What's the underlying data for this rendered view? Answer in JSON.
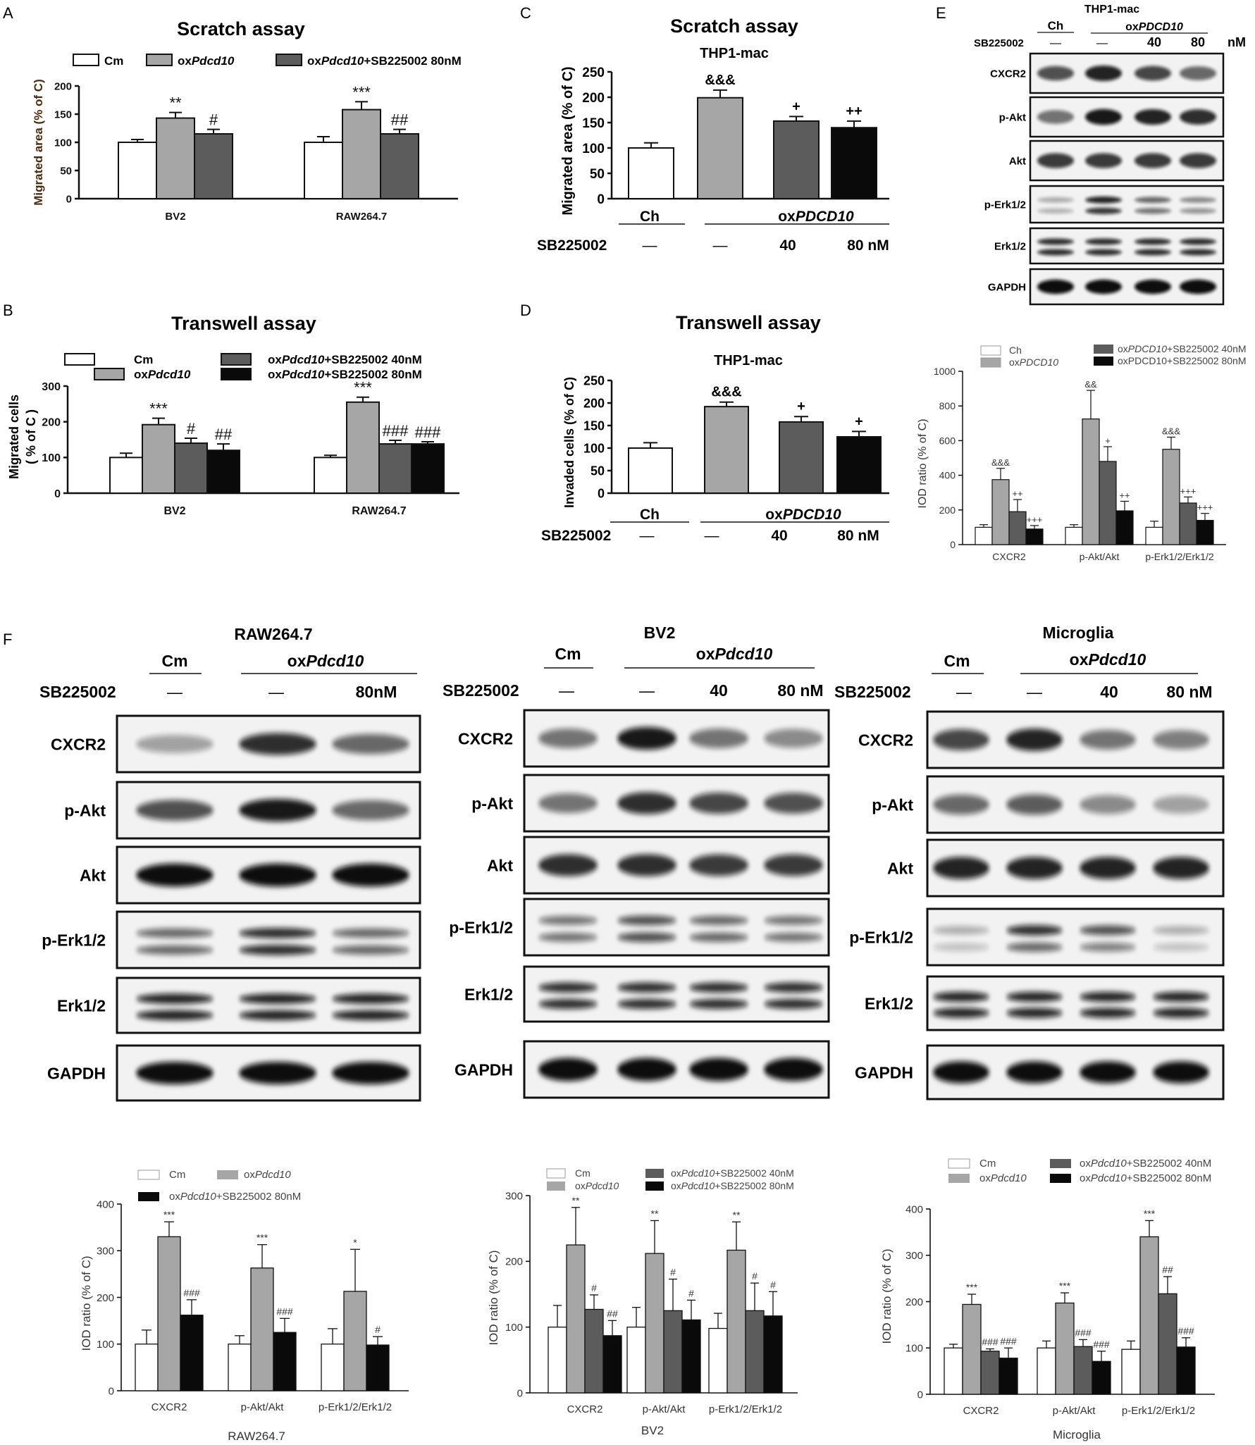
{
  "panel_letters": {
    "A": "A",
    "B": "B",
    "C": "C",
    "D": "D",
    "E": "E",
    "F": "F"
  },
  "common": {
    "cm": "Cm",
    "ch": "Ch",
    "ox_lower_prefix": "ox",
    "ox_lower_gene": "Pdcd10",
    "ox_upper_gene": "PDCD10",
    "sb": "SB225002",
    "dash": "—",
    "d40": "40",
    "d80": "80",
    "nM": "nM",
    "d80nM": "80 nM",
    "sb80nM": "80nM",
    "thp1": "THP1-mac",
    "wb_labels": {
      "cxcr2": "CXCR2",
      "pakt": "p-Akt",
      "akt": "Akt",
      "perk": "p-Erk1/2",
      "erk": "Erk1/2",
      "gapdh": "GAPDH"
    }
  },
  "colors": {
    "c1": "#ffffff",
    "c2": "#a6a6a6",
    "c3": "#5c5c5c",
    "c4": "#0a0a0a",
    "axis": "#111111",
    "ytitle": "#4a2a10"
  },
  "chart_data": [
    {
      "id": "A",
      "type": "bar",
      "title": "Scratch assay",
      "ylabel": "Migrated area (% of C)",
      "ylim": [
        0,
        200
      ],
      "yticks": [
        0,
        50,
        100,
        150,
        200
      ],
      "categories": [
        "BV2",
        "RAW264.7"
      ],
      "legend_text": {
        "s1": "Cm",
        "s2_prefix": "ox",
        "s2_gene": "Pdcd10",
        "s3_prefix": "ox",
        "s3_gene": "Pdcd10",
        "s3_suffix": "+SB225002  80nM"
      },
      "series": [
        {
          "values": [
            100,
            100
          ],
          "err": [
            5,
            10
          ]
        },
        {
          "values": [
            143,
            158
          ],
          "err": [
            10,
            14
          ]
        },
        {
          "values": [
            115,
            115
          ],
          "err": [
            8,
            8
          ]
        }
      ],
      "annotations": [
        [
          "",
          "**",
          "#"
        ],
        [
          "",
          "***",
          "##"
        ]
      ]
    },
    {
      "id": "B",
      "type": "bar",
      "title": "Transwell assay",
      "ylabel": "Migrated cells",
      "ylabel2": "( % of C )",
      "ylim": [
        0,
        300
      ],
      "yticks": [
        0,
        100,
        200,
        300
      ],
      "categories": [
        "BV2",
        "RAW264.7"
      ],
      "legend_text": {
        "s1": "Cm",
        "s2_prefix": "ox",
        "s2_gene": "Pdcd10",
        "s3_prefix": "ox",
        "s3_gene": "Pdcd10",
        "s3_suffix": "+SB225002  40nM",
        "s4_prefix": "ox",
        "s4_gene": "Pdcd10",
        "s4_suffix": "+SB225002  80nM"
      },
      "series": [
        {
          "values": [
            100,
            100
          ],
          "err": [
            12,
            6
          ]
        },
        {
          "values": [
            192,
            255
          ],
          "err": [
            18,
            14
          ]
        },
        {
          "values": [
            140,
            138
          ],
          "err": [
            14,
            10
          ]
        },
        {
          "values": [
            120,
            138
          ],
          "err": [
            18,
            6
          ]
        }
      ],
      "annotations": [
        [
          "",
          "***",
          "#",
          "##"
        ],
        [
          "",
          "***",
          "###",
          "###"
        ]
      ]
    },
    {
      "id": "C",
      "type": "bar",
      "title": "Scratch assay",
      "subtitle": "THP1-mac",
      "ylabel": "Migrated area (% of C)",
      "ylim": [
        0,
        250
      ],
      "yticks": [
        0,
        50,
        100,
        150,
        200,
        250
      ],
      "values": [
        100,
        199,
        153,
        140
      ],
      "err": [
        10,
        15,
        9,
        13
      ],
      "annotations": [
        "",
        "&&&",
        "+",
        "++"
      ]
    },
    {
      "id": "D",
      "type": "bar",
      "title": "Transwell assay",
      "subtitle": "THP1-mac",
      "ylabel": "Invaded cells (% of C)",
      "ylim": [
        0,
        250
      ],
      "yticks": [
        0,
        50,
        100,
        150,
        200,
        250
      ],
      "values": [
        100,
        192,
        158,
        125
      ],
      "err": [
        12,
        10,
        12,
        12
      ],
      "annotations": [
        "",
        "&&&",
        "+",
        "+"
      ]
    },
    {
      "id": "E",
      "type": "bar",
      "ylabel": "IOD ratio (% of C)",
      "ylim": [
        0,
        1000
      ],
      "yticks": [
        0,
        200,
        400,
        600,
        800,
        1000
      ],
      "categories": [
        "CXCR2",
        "p-Akt/Akt",
        "p-Erk1/2/Erk1/2"
      ],
      "legend_text": {
        "s1": "Ch",
        "s2_prefix": "ox",
        "s2_gene": "PDCD10",
        "s3_prefix": "ox",
        "s3_gene": "PDCD10",
        "s3_suffix": "+SB225002 40nM",
        "s4": "oxPDCD10+SB225002 80nM"
      },
      "series": [
        {
          "values": [
            100,
            100,
            100
          ],
          "err": [
            15,
            15,
            35
          ]
        },
        {
          "values": [
            375,
            725,
            550
          ],
          "err": [
            65,
            165,
            70
          ]
        },
        {
          "values": [
            190,
            480,
            240
          ],
          "err": [
            70,
            85,
            35
          ]
        },
        {
          "values": [
            90,
            195,
            140
          ],
          "err": [
            20,
            55,
            40
          ]
        }
      ],
      "annotations": [
        [
          "",
          "&&&",
          "++",
          "+++"
        ],
        [
          "",
          "&&",
          "+",
          "++"
        ],
        [
          "",
          "&&&",
          "+++",
          "+++"
        ]
      ]
    },
    {
      "id": "F1",
      "type": "bar",
      "xlabel": "RAW264.7",
      "ylabel": "IOD ratio (% of C)",
      "ylim": [
        0,
        400
      ],
      "yticks": [
        0,
        100,
        200,
        300,
        400
      ],
      "categories": [
        "CXCR2",
        "p-Akt/Akt",
        "p-Erk1/2/Erk1/2"
      ],
      "legend_text": {
        "s1": "Cm",
        "s2_prefix": "ox",
        "s2_gene": "Pdcd10",
        "s4_prefix": "ox",
        "s4_gene": "Pdcd10",
        "s4_suffix": "+SB225002 80nM"
      },
      "series": [
        {
          "values": [
            100,
            100,
            100
          ],
          "err": [
            30,
            18,
            33
          ]
        },
        {
          "values": [
            330,
            263,
            213
          ],
          "err": [
            32,
            50,
            90
          ]
        },
        {
          "values": [
            162,
            125,
            98
          ],
          "err": [
            33,
            30,
            18
          ]
        }
      ],
      "annotations": [
        [
          "",
          "***",
          "###"
        ],
        [
          "",
          "***",
          "###"
        ],
        [
          "",
          "*",
          "#"
        ]
      ]
    },
    {
      "id": "F2",
      "type": "bar",
      "xlabel": "BV2",
      "ylabel": "IOD ratio (% of C)",
      "ylim": [
        0,
        300
      ],
      "yticks": [
        0,
        100,
        200,
        300
      ],
      "categories": [
        "CXCR2",
        "p-Akt/Akt",
        "p-Erk1/2/Erk1/2"
      ],
      "legend_text": {
        "s1": "Cm",
        "s2_prefix": "ox",
        "s2_gene": "Pdcd10",
        "s3_prefix": "ox",
        "s3_gene": "Pdcd10",
        "s3_suffix": "+SB225002 40nM",
        "s4_prefix": "ox",
        "s4_gene": "Pdcd10",
        "s4_suffix": "+SB225002 80nM"
      },
      "series": [
        {
          "values": [
            100,
            100,
            98
          ],
          "err": [
            33,
            30,
            23
          ]
        },
        {
          "values": [
            225,
            212,
            217
          ],
          "err": [
            57,
            50,
            43
          ]
        },
        {
          "values": [
            127,
            125,
            125
          ],
          "err": [
            22,
            48,
            42
          ]
        },
        {
          "values": [
            87,
            111,
            117
          ],
          "err": [
            23,
            30,
            37
          ]
        }
      ],
      "annotations": [
        [
          "",
          "**",
          "#",
          "##"
        ],
        [
          "",
          "**",
          "#",
          "#"
        ],
        [
          "",
          "**",
          "#",
          "#"
        ]
      ]
    },
    {
      "id": "F3",
      "type": "bar",
      "xlabel": "Microglia",
      "ylabel": "IOD ratio (% of C)",
      "ylim": [
        0,
        400
      ],
      "yticks": [
        0,
        100,
        200,
        300,
        400
      ],
      "categories": [
        "CXCR2",
        "p-Akt/Akt",
        "p-Erk1/2/Erk1/2"
      ],
      "legend_text": {
        "s1": "Cm",
        "s2_prefix": "ox",
        "s2_gene": "Pdcd10",
        "s3_prefix": "ox",
        "s3_gene": "Pdcd10",
        "s3_suffix": "+SB225002 40nM",
        "s4_prefix": "ox",
        "s4_gene": "Pdcd10",
        "s4_suffix": "+SB225002 80nM"
      },
      "series": [
        {
          "values": [
            100,
            100,
            97
          ],
          "err": [
            8,
            15,
            18
          ]
        },
        {
          "values": [
            194,
            197,
            340
          ],
          "err": [
            22,
            22,
            35
          ]
        },
        {
          "values": [
            93,
            103,
            217
          ],
          "err": [
            5,
            15,
            37
          ]
        },
        {
          "values": [
            78,
            71,
            102
          ],
          "err": [
            22,
            22,
            20
          ]
        }
      ],
      "annotations": [
        [
          "",
          "***",
          "###",
          "###"
        ],
        [
          "",
          "***",
          "###",
          "###"
        ],
        [
          "",
          "***",
          "##",
          "###"
        ]
      ]
    }
  ],
  "blots": {
    "E": {
      "title": "THP1-mac"
    },
    "F1": {
      "title": "RAW264.7"
    },
    "F2": {
      "title": "BV2"
    },
    "F3": {
      "title": "Microglia"
    }
  }
}
